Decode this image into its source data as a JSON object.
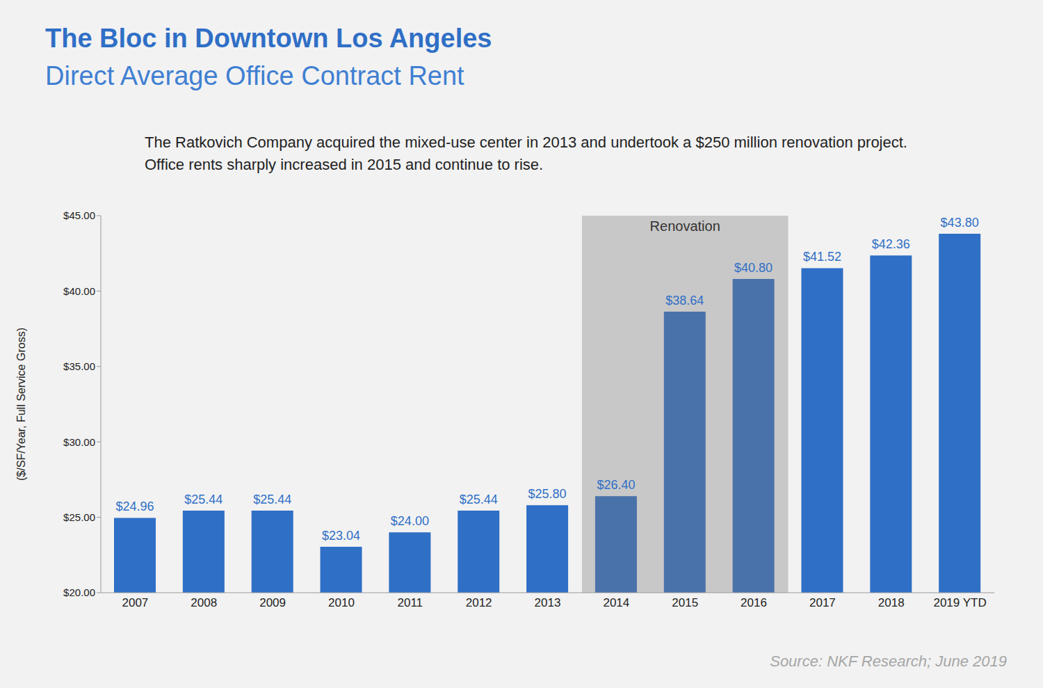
{
  "chart_data": {
    "type": "bar",
    "title": "The Bloc in Downtown Los Angeles",
    "subtitle": "Direct Average Office Contract Rent",
    "description": [
      "The Ratkovich Company acquired the mixed-use center in 2013 and undertook a $250 million renovation project.",
      "Office rents sharply increased in 2015 and continue to rise."
    ],
    "y_label": "($/SF/Year, Full Service Gross)",
    "source": "Source: NKF Research; June 2019",
    "annotations": [
      {
        "text": "Renovation",
        "x_start": "2014",
        "x_end": "2016"
      }
    ],
    "categories": [
      "2007",
      "2008",
      "2009",
      "2010",
      "2011",
      "2012",
      "2013",
      "2014",
      "2015",
      "2016",
      "2017",
      "2018",
      "2019 YTD"
    ],
    "values": [
      24.96,
      25.44,
      25.44,
      23.04,
      24.0,
      25.44,
      25.8,
      26.4,
      38.64,
      40.8,
      41.52,
      42.36,
      43.8
    ],
    "value_labels": [
      "$24.96",
      "$25.44",
      "$25.44",
      "$23.04",
      "$24.00",
      "$25.44",
      "$25.80",
      "$26.40",
      "$38.64",
      "$40.80",
      "$41.52",
      "$42.36",
      "$43.80"
    ],
    "colors": [
      "#2f6fc6",
      "#2f6fc6",
      "#2f6fc6",
      "#2f6fc6",
      "#2f6fc6",
      "#2f6fc6",
      "#2f6fc6",
      "#4a72aa",
      "#4a72aa",
      "#4a72aa",
      "#2f6fc6",
      "#2f6fc6",
      "#2f6fc6"
    ],
    "ylim": [
      20,
      45
    ],
    "yticks": [
      {
        "value": 20,
        "label": "$20.00"
      },
      {
        "value": 25,
        "label": "$25.00"
      },
      {
        "value": 30,
        "label": "$30.00"
      },
      {
        "value": 35,
        "label": "$35.00"
      },
      {
        "value": 40,
        "label": "$40.00"
      },
      {
        "value": 45,
        "label": "$45.00"
      }
    ],
    "grid": false,
    "data_labels": true
  }
}
